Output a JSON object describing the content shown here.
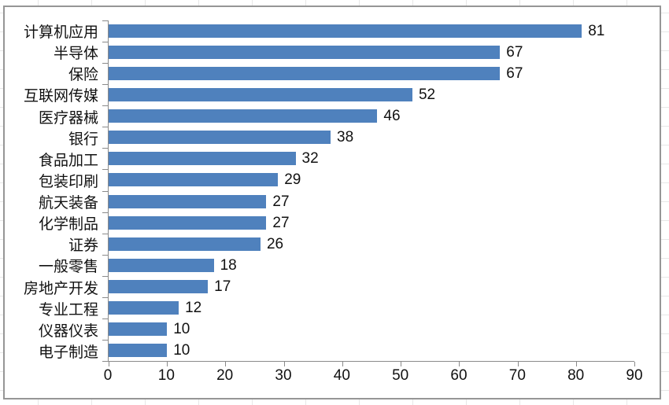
{
  "chart_data": {
    "type": "bar",
    "orientation": "horizontal",
    "title": "",
    "xlabel": "",
    "ylabel": "",
    "categories": [
      "计算机应用",
      "半导体",
      "保险",
      "互联网传媒",
      "医疗器械",
      "银行",
      "食品加工",
      "包装印刷",
      "航天装备",
      "化学制品",
      "证券",
      "一般零售",
      "房地产开发",
      "专业工程",
      "仪器仪表",
      "电子制造"
    ],
    "values": [
      81,
      67,
      67,
      52,
      46,
      38,
      32,
      29,
      27,
      27,
      26,
      18,
      17,
      12,
      10,
      10
    ],
    "xlim": [
      0,
      90
    ],
    "x_ticks": [
      0,
      10,
      20,
      30,
      40,
      50,
      60,
      70,
      80,
      90
    ],
    "grid": false,
    "legend": false,
    "data_labels": true,
    "bar_color": "#4f81bd"
  },
  "colors": {
    "bar": "#4f81bd",
    "axis_line": "#8a8a8a",
    "frame_border": "#969696",
    "text": "#111111",
    "sheet_gridline": "#e7e7e7"
  }
}
